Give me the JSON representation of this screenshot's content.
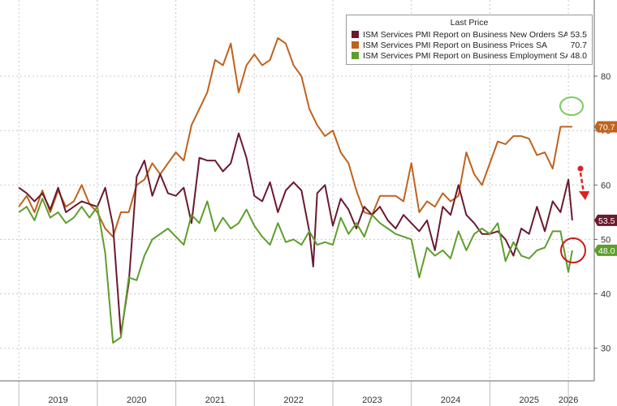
{
  "chart_data": {
    "type": "line",
    "title": "",
    "xlabel": "",
    "ylabel": "",
    "ylim": [
      24,
      94
    ],
    "y_ticks": [
      30,
      40,
      50,
      60,
      70,
      80
    ],
    "grid": true,
    "legend_position": "top-right",
    "legend_header": "Last Price",
    "x_tick_labels": [
      {
        "label": "2019",
        "t": 2019.5
      },
      {
        "label": "2020",
        "t": 2020.5
      },
      {
        "label": "2021",
        "t": 2021.5
      },
      {
        "label": "2022",
        "t": 2022.5
      },
      {
        "label": "2023",
        "t": 2023.5
      },
      {
        "label": "2024",
        "t": 2024.5
      },
      {
        "label": "2025",
        "t": 2025.5
      },
      {
        "label": "2026",
        "t": 2026.0
      }
    ],
    "series": [
      {
        "name": "ISM Services PMI Report on Business New Orders SA",
        "last_value_label": "53.5",
        "color": "#6b1a2e",
        "points": [
          [
            2019.0,
            59.5
          ],
          [
            2019.1,
            58.5
          ],
          [
            2019.2,
            57
          ],
          [
            2019.3,
            58.5
          ],
          [
            2019.4,
            55.5
          ],
          [
            2019.5,
            59.5
          ],
          [
            2019.6,
            55
          ],
          [
            2019.7,
            56
          ],
          [
            2019.8,
            57
          ],
          [
            2019.9,
            56.5
          ],
          [
            2020.0,
            56
          ],
          [
            2020.1,
            59.5
          ],
          [
            2020.2,
            52.5
          ],
          [
            2020.3,
            32.5
          ],
          [
            2020.4,
            42
          ],
          [
            2020.5,
            61.5
          ],
          [
            2020.6,
            64.5
          ],
          [
            2020.7,
            58
          ],
          [
            2020.8,
            62
          ],
          [
            2020.9,
            58.5
          ],
          [
            2021.0,
            58
          ],
          [
            2021.1,
            59.5
          ],
          [
            2021.2,
            53
          ],
          [
            2021.3,
            65
          ],
          [
            2021.4,
            64.5
          ],
          [
            2021.5,
            64.5
          ],
          [
            2021.6,
            62.5
          ],
          [
            2021.7,
            64
          ],
          [
            2021.8,
            69.5
          ],
          [
            2021.9,
            65
          ],
          [
            2022.0,
            58
          ],
          [
            2022.1,
            57
          ],
          [
            2022.2,
            60.5
          ],
          [
            2022.3,
            55
          ],
          [
            2022.4,
            59
          ],
          [
            2022.5,
            60.5
          ],
          [
            2022.6,
            59
          ],
          [
            2022.7,
            51.5
          ],
          [
            2022.75,
            45
          ],
          [
            2022.8,
            58.5
          ],
          [
            2022.9,
            60
          ],
          [
            2023.0,
            52.5
          ],
          [
            2023.1,
            57.5
          ],
          [
            2023.2,
            55.5
          ],
          [
            2023.3,
            52
          ],
          [
            2023.4,
            56
          ],
          [
            2023.5,
            54.5
          ],
          [
            2023.6,
            56
          ],
          [
            2023.7,
            53.5
          ],
          [
            2023.8,
            52
          ],
          [
            2023.9,
            54.5
          ],
          [
            2024.0,
            53
          ],
          [
            2024.1,
            51.5
          ],
          [
            2024.2,
            53.5
          ],
          [
            2024.3,
            48
          ],
          [
            2024.4,
            56
          ],
          [
            2024.5,
            54.5
          ],
          [
            2024.6,
            60
          ],
          [
            2024.7,
            54.5
          ],
          [
            2024.8,
            53
          ],
          [
            2024.9,
            51
          ],
          [
            2025.0,
            51
          ],
          [
            2025.1,
            51.5
          ],
          [
            2025.2,
            50
          ],
          [
            2025.3,
            47
          ],
          [
            2025.4,
            52
          ],
          [
            2025.5,
            51
          ],
          [
            2025.6,
            56
          ],
          [
            2025.7,
            51.5
          ],
          [
            2025.8,
            57
          ],
          [
            2025.9,
            55
          ],
          [
            2026.0,
            61
          ],
          [
            2026.05,
            53.5
          ]
        ]
      },
      {
        "name": "ISM Services PMI Report on Business Prices SA",
        "last_value_label": "70.7",
        "color": "#c0621e",
        "points": [
          [
            2019.0,
            56
          ],
          [
            2019.1,
            58
          ],
          [
            2019.2,
            55
          ],
          [
            2019.3,
            59
          ],
          [
            2019.4,
            55
          ],
          [
            2019.5,
            59
          ],
          [
            2019.6,
            56
          ],
          [
            2019.7,
            57
          ],
          [
            2019.8,
            60
          ],
          [
            2019.9,
            56.5
          ],
          [
            2020.0,
            55
          ],
          [
            2020.1,
            52
          ],
          [
            2020.2,
            50.5
          ],
          [
            2020.3,
            55
          ],
          [
            2020.4,
            55
          ],
          [
            2020.5,
            60
          ],
          [
            2020.6,
            61
          ],
          [
            2020.7,
            64
          ],
          [
            2020.8,
            62
          ],
          [
            2020.9,
            64
          ],
          [
            2021.0,
            66
          ],
          [
            2021.1,
            64.5
          ],
          [
            2021.2,
            71
          ],
          [
            2021.3,
            74
          ],
          [
            2021.4,
            77
          ],
          [
            2021.5,
            83
          ],
          [
            2021.6,
            82
          ],
          [
            2021.7,
            86
          ],
          [
            2021.8,
            77
          ],
          [
            2021.9,
            82
          ],
          [
            2022.0,
            84
          ],
          [
            2022.1,
            82
          ],
          [
            2022.2,
            83
          ],
          [
            2022.3,
            87
          ],
          [
            2022.4,
            86
          ],
          [
            2022.5,
            82
          ],
          [
            2022.6,
            80
          ],
          [
            2022.7,
            74
          ],
          [
            2022.8,
            71
          ],
          [
            2022.9,
            69
          ],
          [
            2023.0,
            70
          ],
          [
            2023.1,
            66
          ],
          [
            2023.2,
            64
          ],
          [
            2023.3,
            59
          ],
          [
            2023.4,
            55
          ],
          [
            2023.5,
            54.5
          ],
          [
            2023.6,
            58
          ],
          [
            2023.7,
            58
          ],
          [
            2023.8,
            58
          ],
          [
            2023.9,
            57
          ],
          [
            2024.0,
            64
          ],
          [
            2024.1,
            55
          ],
          [
            2024.2,
            57
          ],
          [
            2024.3,
            56
          ],
          [
            2024.4,
            58.5
          ],
          [
            2024.5,
            57
          ],
          [
            2024.6,
            58
          ],
          [
            2024.7,
            66
          ],
          [
            2024.8,
            62
          ],
          [
            2024.9,
            60
          ],
          [
            2025.0,
            64
          ],
          [
            2025.1,
            68
          ],
          [
            2025.2,
            67.5
          ],
          [
            2025.3,
            69
          ],
          [
            2025.4,
            69
          ],
          [
            2025.5,
            68.5
          ],
          [
            2025.6,
            65.5
          ],
          [
            2025.7,
            66
          ],
          [
            2025.8,
            63
          ],
          [
            2025.9,
            70.7
          ],
          [
            2026.05,
            70.7
          ]
        ]
      },
      {
        "name": "ISM Services PMI Report on Business Employment SA",
        "last_value_label": "48.0",
        "color": "#5e9e2c",
        "points": [
          [
            2019.0,
            55
          ],
          [
            2019.1,
            56
          ],
          [
            2019.2,
            53.5
          ],
          [
            2019.3,
            57.5
          ],
          [
            2019.4,
            54
          ],
          [
            2019.5,
            55
          ],
          [
            2019.6,
            53
          ],
          [
            2019.7,
            54
          ],
          [
            2019.8,
            56
          ],
          [
            2019.9,
            54
          ],
          [
            2020.0,
            56
          ],
          [
            2020.1,
            47.5
          ],
          [
            2020.2,
            31
          ],
          [
            2020.3,
            32
          ],
          [
            2020.4,
            43
          ],
          [
            2020.5,
            42.5
          ],
          [
            2020.6,
            47
          ],
          [
            2020.7,
            50
          ],
          [
            2020.8,
            51
          ],
          [
            2020.9,
            52
          ],
          [
            2021.0,
            50.5
          ],
          [
            2021.1,
            49
          ],
          [
            2021.2,
            54.5
          ],
          [
            2021.3,
            53
          ],
          [
            2021.4,
            57
          ],
          [
            2021.5,
            51.5
          ],
          [
            2021.6,
            54
          ],
          [
            2021.7,
            52
          ],
          [
            2021.8,
            53
          ],
          [
            2021.9,
            55.5
          ],
          [
            2022.0,
            52.5
          ],
          [
            2022.1,
            50.5
          ],
          [
            2022.2,
            49
          ],
          [
            2022.3,
            53
          ],
          [
            2022.4,
            49.5
          ],
          [
            2022.5,
            50
          ],
          [
            2022.6,
            49
          ],
          [
            2022.7,
            51.5
          ],
          [
            2022.8,
            49
          ],
          [
            2022.9,
            49.5
          ],
          [
            2023.0,
            49
          ],
          [
            2023.1,
            54
          ],
          [
            2023.2,
            51
          ],
          [
            2023.3,
            53
          ],
          [
            2023.4,
            50.5
          ],
          [
            2023.5,
            54.5
          ],
          [
            2023.6,
            53
          ],
          [
            2023.7,
            52
          ],
          [
            2023.8,
            51
          ],
          [
            2023.9,
            50.5
          ],
          [
            2024.0,
            50
          ],
          [
            2024.1,
            43
          ],
          [
            2024.2,
            48.5
          ],
          [
            2024.3,
            47
          ],
          [
            2024.4,
            48
          ],
          [
            2024.5,
            46.5
          ],
          [
            2024.6,
            51.5
          ],
          [
            2024.7,
            48
          ],
          [
            2024.8,
            51
          ],
          [
            2024.9,
            52
          ],
          [
            2025.0,
            51
          ],
          [
            2025.1,
            53
          ],
          [
            2025.2,
            46
          ],
          [
            2025.3,
            49.5
          ],
          [
            2025.4,
            47
          ],
          [
            2025.5,
            46.5
          ],
          [
            2025.6,
            48
          ],
          [
            2025.7,
            48.5
          ],
          [
            2025.8,
            51.5
          ],
          [
            2025.9,
            51.5
          ],
          [
            2026.0,
            44
          ],
          [
            2026.05,
            48.0
          ]
        ]
      }
    ]
  }
}
